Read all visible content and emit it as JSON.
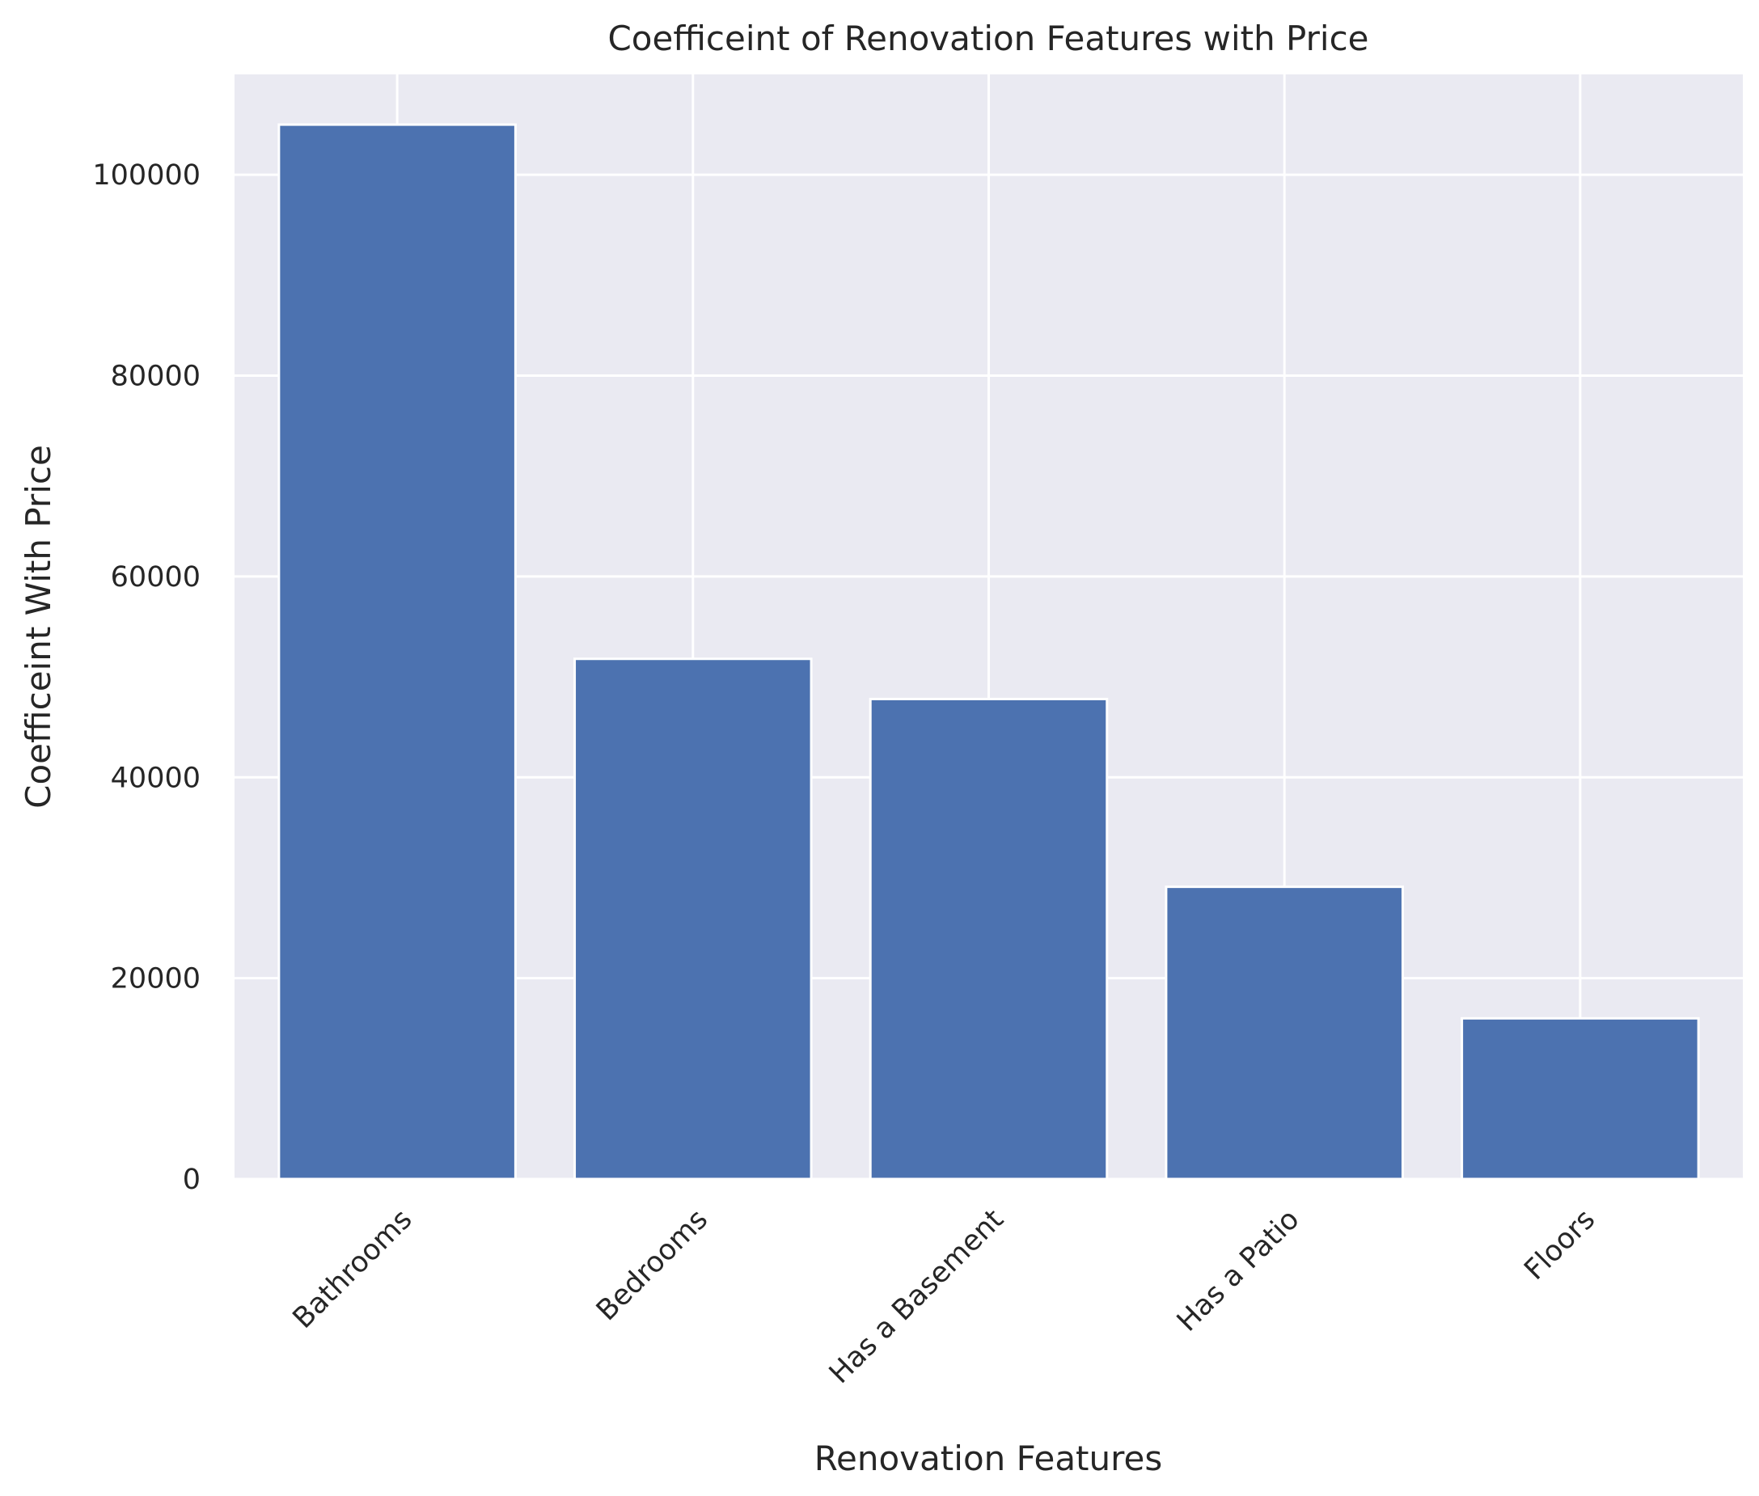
{
  "chart_data": {
    "type": "bar",
    "title": "Coefficeint of Renovation Features with Price",
    "xlabel": "Renovation Features",
    "ylabel": "Coefficeint With Price",
    "categories": [
      "Bathrooms",
      "Bedrooms",
      "Has a Basement",
      "Has a Patio",
      "Floors"
    ],
    "values": [
      105000,
      51800,
      47800,
      29100,
      16000
    ],
    "ylim": [
      0,
      110000
    ],
    "yticks": [
      0,
      20000,
      40000,
      60000,
      80000,
      100000
    ],
    "grid": true,
    "colors": {
      "bar": "#4c72b0",
      "background": "#eaeaf2",
      "grid": "#ffffff",
      "text": "#262626"
    }
  }
}
